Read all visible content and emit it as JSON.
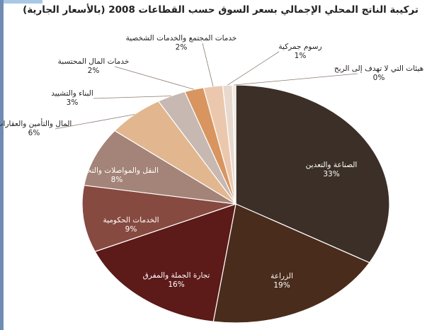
{
  "chart_data": {
    "type": "pie",
    "title": "تركيبة الناتج المحلي الإجمالي بسعر السوق حسب القطاعات 2008 (بالأسعار الجارية)",
    "slices": [
      {
        "label": "الصناعة والتعدين",
        "value": 33,
        "value_label": "33%",
        "color": "#3b2f27"
      },
      {
        "label": "الزراعة",
        "value": 19,
        "value_label": "19%",
        "color": "#4a2c1c"
      },
      {
        "label": "تجارة الجملة والمفرق",
        "value": 16,
        "value_label": "16%",
        "color": "#5c1a18"
      },
      {
        "label": "الخدمات الحكومية",
        "value": 9,
        "value_label": "9%",
        "color": "#874a40"
      },
      {
        "label": "النقل والمواصلات والتخزين",
        "value": 8,
        "value_label": "8%",
        "color": "#a48478"
      },
      {
        "label": "المال والتأمين والعقارات",
        "value": 6,
        "value_label": "6%",
        "color": "#e2b68f"
      },
      {
        "label": "البناء والتشييد",
        "value": 3,
        "value_label": "3%",
        "color": "#c7b8b1"
      },
      {
        "label": "خدمات المال المحتسبة",
        "value": 2,
        "value_label": "2%",
        "color": "#d8955f"
      },
      {
        "label": "خدمات المجتمع والخدمات الشخصية",
        "value": 2,
        "value_label": "2%",
        "color": "#ebc8ad"
      },
      {
        "label": "رسوم جمركية",
        "value": 1,
        "value_label": "1%",
        "color": "#e8d9ce"
      },
      {
        "label": "هيئات التي لا تهدف إلى الربح",
        "value": 0,
        "value_label": "0%",
        "color": "#f2e9e1"
      }
    ]
  }
}
